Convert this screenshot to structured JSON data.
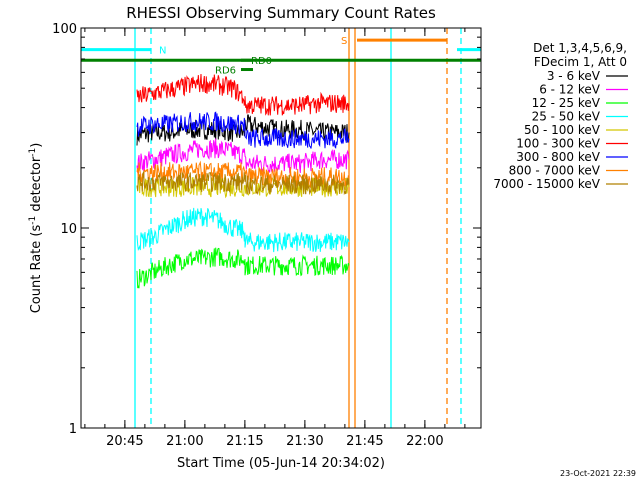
{
  "chart_data": {
    "type": "line",
    "title": "RHESSI Observing Summary Count Rates",
    "xlabel": "Start Time (05-Jun-14 20:34:02)",
    "ylabel_prefix": "Count Rate (s",
    "ylabel_sup1": "-1",
    "ylabel_mid": " detector",
    "ylabel_sup2": "-1",
    "ylabel_suffix": ")",
    "x_axis_unit": "minutes after 20:34:02 UT",
    "xlim": [
      0,
      100
    ],
    "ylim": [
      1,
      100
    ],
    "yscale": "log",
    "x_ticks": [
      {
        "x": 10.97,
        "label": "20:45"
      },
      {
        "x": 25.97,
        "label": "21:00"
      },
      {
        "x": 40.97,
        "label": "21:15"
      },
      {
        "x": 55.97,
        "label": "21:30"
      },
      {
        "x": 70.97,
        "label": "21:45"
      },
      {
        "x": 85.97,
        "label": "22:00"
      }
    ],
    "y_ticks": [
      {
        "y": 1,
        "label": "1"
      },
      {
        "y": 10,
        "label": "10"
      },
      {
        "y": 100,
        "label": "100"
      }
    ],
    "legend_header": [
      "Det 1,3,4,5,6,9,",
      "FDecim 1, Att 0"
    ],
    "legend_position": "right",
    "series": [
      {
        "name": "3 - 6 keV",
        "color": "#000000",
        "segments": [
          {
            "x": [
              14.0,
              18.0,
              22.0,
              26.0,
              30.0,
              34.0,
              38.0,
              41.0
            ],
            "y": [
              29,
              30,
              30,
              31,
              31,
              31,
              30,
              30
            ]
          },
          {
            "x": [
              41.0,
              45.0,
              50.0,
              55.0,
              60.0,
              67.0
            ],
            "y": [
              33,
              32,
              31,
              31,
              30,
              30
            ]
          }
        ]
      },
      {
        "name": "6 - 12 keV",
        "color": "#ff00ff",
        "segments": [
          {
            "x": [
              14.0,
              18.0,
              22.0,
              26.0,
              30.0,
              34.0,
              38.0,
              41.0
            ],
            "y": [
              21,
              22,
              23,
              24,
              25,
              25,
              24,
              23
            ]
          },
          {
            "x": [
              41.0,
              45.0,
              50.0,
              55.0,
              60.0,
              67.0
            ],
            "y": [
              21,
              21,
              21,
              21,
              22,
              22
            ]
          }
        ]
      },
      {
        "name": "12 - 25 keV",
        "color": "#00ff00",
        "segments": [
          {
            "x": [
              14.0,
              18.0,
              22.0,
              26.0,
              30.0,
              34.0,
              38.0,
              41.0
            ],
            "y": [
              5.5,
              6.0,
              6.5,
              7.0,
              7.0,
              7.2,
              7.0,
              7.0
            ]
          },
          {
            "x": [
              41.0,
              45.0,
              50.0,
              55.0,
              60.0,
              67.0
            ],
            "y": [
              6.5,
              6.5,
              6.5,
              6.5,
              6.5,
              6.5
            ]
          }
        ]
      },
      {
        "name": "25 - 50 keV",
        "color": "#00ffff",
        "segments": [
          {
            "x": [
              14.0,
              18.0,
              22.0,
              26.0,
              30.0,
              34.0,
              38.0,
              41.0
            ],
            "y": [
              8.5,
              9.0,
              10.0,
              11.0,
              11.5,
              11.0,
              10.0,
              9.5
            ]
          },
          {
            "x": [
              41.0,
              45.0,
              50.0,
              55.0,
              60.0,
              67.0
            ],
            "y": [
              8.5,
              8.5,
              8.5,
              8.5,
              8.5,
              8.5
            ]
          }
        ]
      },
      {
        "name": "50 - 100 keV",
        "color": "#d4c800",
        "segments": [
          {
            "x": [
              14.0,
              18.0,
              22.0,
              26.0,
              30.0,
              34.0,
              38.0,
              41.0
            ],
            "y": [
              16,
              16,
              16,
              16,
              16,
              16,
              16,
              16
            ]
          },
          {
            "x": [
              41.0,
              45.0,
              50.0,
              55.0,
              60.0,
              67.0
            ],
            "y": [
              16,
              16,
              16,
              16,
              16,
              16
            ]
          }
        ]
      },
      {
        "name": "100 - 300 keV",
        "color": "#ff0000",
        "segments": [
          {
            "x": [
              14.0,
              18.0,
              22.0,
              26.0,
              30.0,
              34.0,
              38.0,
              41.0
            ],
            "y": [
              45,
              47,
              49,
              51,
              53,
              52,
              50,
              44
            ]
          },
          {
            "x": [
              41.0,
              45.0,
              50.0,
              55.0,
              60.0,
              67.0
            ],
            "y": [
              41,
              41,
              41,
              41,
              42,
              42
            ]
          }
        ]
      },
      {
        "name": "300 - 800 keV",
        "color": "#0000ff",
        "segments": [
          {
            "x": [
              14.0,
              18.0,
              22.0,
              26.0,
              30.0,
              34.0,
              38.0,
              41.0
            ],
            "y": [
              32,
              33,
              33,
              34,
              34,
              34,
              33,
              33
            ]
          },
          {
            "x": [
              41.0,
              45.0,
              50.0,
              55.0,
              60.0,
              67.0
            ],
            "y": [
              28,
              28,
              28,
              28,
              28,
              28
            ]
          }
        ]
      },
      {
        "name": "800 - 7000 keV",
        "color": "#ff8000",
        "segments": [
          {
            "x": [
              14.0,
              18.0,
              22.0,
              26.0,
              30.0,
              34.0,
              38.0,
              41.0
            ],
            "y": [
              19,
              19,
              19,
              19,
              19,
              19,
              19,
              19
            ]
          },
          {
            "x": [
              41.0,
              45.0,
              50.0,
              55.0,
              60.0,
              67.0
            ],
            "y": [
              18,
              18,
              18,
              18,
              18,
              18
            ]
          }
        ]
      },
      {
        "name": "7000 - 15000 keV",
        "color": "#b08000",
        "segments": [
          {
            "x": [
              14.0,
              18.0,
              22.0,
              26.0,
              30.0,
              34.0,
              38.0,
              41.0
            ],
            "y": [
              17,
              17,
              17,
              17,
              17,
              17,
              17,
              17
            ]
          },
          {
            "x": [
              41.0,
              45.0,
              50.0,
              55.0,
              60.0,
              67.0
            ],
            "y": [
              16.5,
              16.5,
              16.5,
              16.5,
              16.5,
              16.5
            ]
          }
        ]
      }
    ],
    "vertical_markers": [
      {
        "x": 13.5,
        "color": "#00ffff",
        "style": "solid"
      },
      {
        "x": 17.5,
        "color": "#00ffff",
        "style": "dashed"
      },
      {
        "x": 67.0,
        "color": "#ff8000",
        "style": "solid"
      },
      {
        "x": 68.5,
        "color": "#ff8000",
        "style": "solid"
      },
      {
        "x": 77.5,
        "color": "#00ffff",
        "style": "solid"
      },
      {
        "x": 91.5,
        "color": "#ff8000",
        "style": "dashed"
      },
      {
        "x": 95.0,
        "color": "#00ffff",
        "style": "dashed"
      }
    ],
    "flag_bars": [
      {
        "label": "N",
        "color": "#00ffff",
        "x": [
          0,
          17.5
        ],
        "y": 78,
        "label_x": 19.5
      },
      {
        "label": "",
        "color": "#00ffff",
        "x": [
          94.0,
          100
        ],
        "y": 78
      },
      {
        "label": "S",
        "color": "#ff8000",
        "x": [
          69.0,
          91.5
        ],
        "y": 87,
        "label_x": 65.0
      },
      {
        "label": "",
        "color": "#008000",
        "x": [
          0,
          100
        ],
        "y": 69
      },
      {
        "label": "RD6",
        "color": "#008000",
        "x": [
          40.0,
          43.0
        ],
        "y": 62,
        "label_x": 33.5
      },
      {
        "label": "RD0",
        "color": "#008000",
        "x": [
          40.0,
          43.0
        ],
        "y": 69,
        "label_x": 42.5
      }
    ]
  },
  "timestamp": "23-Oct-2021 22:39"
}
